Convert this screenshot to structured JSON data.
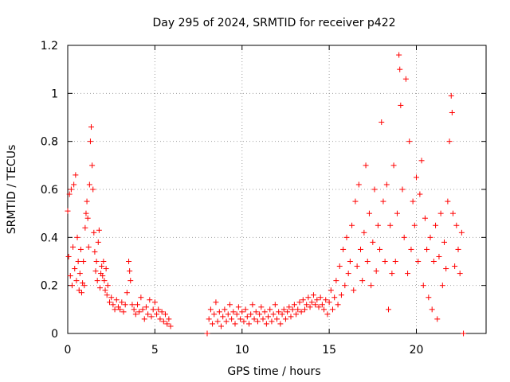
{
  "chart_data": {
    "type": "scatter",
    "title": "Day 295 of 2024, SRMTID for receiver p422",
    "xlabel": "GPS time / hours",
    "ylabel": "SRMTID / TECUs",
    "xlim": [
      0,
      24
    ],
    "ylim": [
      0,
      1.2
    ],
    "xticks": [
      0,
      5,
      10,
      15,
      20
    ],
    "yticks": [
      0,
      0.2,
      0.4,
      0.6,
      0.8,
      1,
      1.2
    ],
    "ytick_labels": [
      "0",
      "0.2",
      "0.4",
      "0.6",
      "0.8",
      "1",
      "1.2"
    ],
    "grid": true,
    "marker": "+",
    "color": "#ff0000",
    "series": [
      {
        "name": "SRMTID",
        "points": [
          [
            0.0,
            0.51
          ],
          [
            0.05,
            0.32
          ],
          [
            0.1,
            0.58
          ],
          [
            0.15,
            0.24
          ],
          [
            0.2,
            0.6
          ],
          [
            0.25,
            0.2
          ],
          [
            0.3,
            0.36
          ],
          [
            0.35,
            0.62
          ],
          [
            0.4,
            0.27
          ],
          [
            0.45,
            0.66
          ],
          [
            0.5,
            0.22
          ],
          [
            0.55,
            0.4
          ],
          [
            0.6,
            0.3
          ],
          [
            0.65,
            0.18
          ],
          [
            0.7,
            0.25
          ],
          [
            0.75,
            0.35
          ],
          [
            0.8,
            0.17
          ],
          [
            0.85,
            0.21
          ],
          [
            0.9,
            0.3
          ],
          [
            0.95,
            0.2
          ],
          [
            1.0,
            0.44
          ],
          [
            1.05,
            0.5
          ],
          [
            1.1,
            0.55
          ],
          [
            1.15,
            0.48
          ],
          [
            1.2,
            0.36
          ],
          [
            1.25,
            0.62
          ],
          [
            1.3,
            0.8
          ],
          [
            1.35,
            0.86
          ],
          [
            1.4,
            0.7
          ],
          [
            1.45,
            0.6
          ],
          [
            1.5,
            0.42
          ],
          [
            1.55,
            0.34
          ],
          [
            1.6,
            0.26
          ],
          [
            1.65,
            0.3
          ],
          [
            1.7,
            0.22
          ],
          [
            1.75,
            0.38
          ],
          [
            1.8,
            0.43
          ],
          [
            1.85,
            0.19
          ],
          [
            1.9,
            0.25
          ],
          [
            1.95,
            0.28
          ],
          [
            2.0,
            0.24
          ],
          [
            2.05,
            0.3
          ],
          [
            2.1,
            0.22
          ],
          [
            2.15,
            0.18
          ],
          [
            2.2,
            0.27
          ],
          [
            2.25,
            0.16
          ],
          [
            2.3,
            0.2
          ],
          [
            2.4,
            0.13
          ],
          [
            2.5,
            0.15
          ],
          [
            2.6,
            0.12
          ],
          [
            2.7,
            0.1
          ],
          [
            2.8,
            0.14
          ],
          [
            2.9,
            0.11
          ],
          [
            3.0,
            0.1
          ],
          [
            3.1,
            0.13
          ],
          [
            3.2,
            0.09
          ],
          [
            3.3,
            0.12
          ],
          [
            3.4,
            0.17
          ],
          [
            3.5,
            0.3
          ],
          [
            3.55,
            0.26
          ],
          [
            3.6,
            0.22
          ],
          [
            3.7,
            0.12
          ],
          [
            3.8,
            0.1
          ],
          [
            3.9,
            0.08
          ],
          [
            4.0,
            0.12
          ],
          [
            4.1,
            0.09
          ],
          [
            4.2,
            0.15
          ],
          [
            4.3,
            0.1
          ],
          [
            4.4,
            0.06
          ],
          [
            4.5,
            0.11
          ],
          [
            4.6,
            0.08
          ],
          [
            4.7,
            0.14
          ],
          [
            4.8,
            0.07
          ],
          [
            4.9,
            0.1
          ],
          [
            5.0,
            0.13
          ],
          [
            5.1,
            0.08
          ],
          [
            5.2,
            0.1
          ],
          [
            5.3,
            0.06
          ],
          [
            5.4,
            0.09
          ],
          [
            5.5,
            0.05
          ],
          [
            5.6,
            0.08
          ],
          [
            5.7,
            0.04
          ],
          [
            5.8,
            0.06
          ],
          [
            5.9,
            0.03
          ],
          [
            8.0,
            0.0
          ],
          [
            8.1,
            0.06
          ],
          [
            8.2,
            0.1
          ],
          [
            8.3,
            0.04
          ],
          [
            8.4,
            0.08
          ],
          [
            8.5,
            0.13
          ],
          [
            8.6,
            0.05
          ],
          [
            8.7,
            0.09
          ],
          [
            8.8,
            0.03
          ],
          [
            8.9,
            0.07
          ],
          [
            9.0,
            0.1
          ],
          [
            9.1,
            0.05
          ],
          [
            9.2,
            0.08
          ],
          [
            9.3,
            0.12
          ],
          [
            9.4,
            0.06
          ],
          [
            9.5,
            0.09
          ],
          [
            9.6,
            0.04
          ],
          [
            9.7,
            0.08
          ],
          [
            9.8,
            0.11
          ],
          [
            9.9,
            0.06
          ],
          [
            10.0,
            0.09
          ],
          [
            10.1,
            0.05
          ],
          [
            10.2,
            0.1
          ],
          [
            10.3,
            0.07
          ],
          [
            10.4,
            0.04
          ],
          [
            10.5,
            0.08
          ],
          [
            10.6,
            0.12
          ],
          [
            10.7,
            0.06
          ],
          [
            10.8,
            0.09
          ],
          [
            10.9,
            0.05
          ],
          [
            11.0,
            0.08
          ],
          [
            11.1,
            0.11
          ],
          [
            11.2,
            0.06
          ],
          [
            11.3,
            0.09
          ],
          [
            11.4,
            0.04
          ],
          [
            11.5,
            0.07
          ],
          [
            11.6,
            0.1
          ],
          [
            11.7,
            0.05
          ],
          [
            11.8,
            0.08
          ],
          [
            11.9,
            0.12
          ],
          [
            12.0,
            0.06
          ],
          [
            12.1,
            0.09
          ],
          [
            12.2,
            0.04
          ],
          [
            12.3,
            0.08
          ],
          [
            12.4,
            0.1
          ],
          [
            12.5,
            0.06
          ],
          [
            12.6,
            0.09
          ],
          [
            12.7,
            0.11
          ],
          [
            12.8,
            0.07
          ],
          [
            12.9,
            0.1
          ],
          [
            13.0,
            0.12
          ],
          [
            13.1,
            0.08
          ],
          [
            13.2,
            0.1
          ],
          [
            13.3,
            0.13
          ],
          [
            13.4,
            0.09
          ],
          [
            13.5,
            0.14
          ],
          [
            13.6,
            0.1
          ],
          [
            13.7,
            0.12
          ],
          [
            13.8,
            0.15
          ],
          [
            13.9,
            0.11
          ],
          [
            14.0,
            0.13
          ],
          [
            14.1,
            0.16
          ],
          [
            14.2,
            0.12
          ],
          [
            14.3,
            0.14
          ],
          [
            14.4,
            0.11
          ],
          [
            14.5,
            0.15
          ],
          [
            14.6,
            0.12
          ],
          [
            14.7,
            0.1
          ],
          [
            14.8,
            0.14
          ],
          [
            14.9,
            0.08
          ],
          [
            15.0,
            0.13
          ],
          [
            15.1,
            0.18
          ],
          [
            15.2,
            0.1
          ],
          [
            15.3,
            0.15
          ],
          [
            15.4,
            0.22
          ],
          [
            15.5,
            0.12
          ],
          [
            15.6,
            0.28
          ],
          [
            15.7,
            0.16
          ],
          [
            15.8,
            0.35
          ],
          [
            15.9,
            0.2
          ],
          [
            16.0,
            0.4
          ],
          [
            16.1,
            0.25
          ],
          [
            16.2,
            0.3
          ],
          [
            16.3,
            0.45
          ],
          [
            16.4,
            0.18
          ],
          [
            16.5,
            0.55
          ],
          [
            16.6,
            0.28
          ],
          [
            16.7,
            0.62
          ],
          [
            16.8,
            0.35
          ],
          [
            16.9,
            0.22
          ],
          [
            17.0,
            0.42
          ],
          [
            17.1,
            0.7
          ],
          [
            17.2,
            0.3
          ],
          [
            17.3,
            0.5
          ],
          [
            17.4,
            0.2
          ],
          [
            17.5,
            0.38
          ],
          [
            17.6,
            0.6
          ],
          [
            17.7,
            0.26
          ],
          [
            17.8,
            0.45
          ],
          [
            17.9,
            0.35
          ],
          [
            18.0,
            0.88
          ],
          [
            18.1,
            0.55
          ],
          [
            18.2,
            0.3
          ],
          [
            18.3,
            0.62
          ],
          [
            18.4,
            0.1
          ],
          [
            18.5,
            0.45
          ],
          [
            18.6,
            0.25
          ],
          [
            18.7,
            0.7
          ],
          [
            18.8,
            0.3
          ],
          [
            18.9,
            0.5
          ],
          [
            19.0,
            1.16
          ],
          [
            19.05,
            1.1
          ],
          [
            19.1,
            0.95
          ],
          [
            19.2,
            0.6
          ],
          [
            19.3,
            0.4
          ],
          [
            19.4,
            1.06
          ],
          [
            19.5,
            0.25
          ],
          [
            19.6,
            0.8
          ],
          [
            19.7,
            0.35
          ],
          [
            19.8,
            0.55
          ],
          [
            19.9,
            0.45
          ],
          [
            20.0,
            0.65
          ],
          [
            20.1,
            0.3
          ],
          [
            20.2,
            0.58
          ],
          [
            20.3,
            0.72
          ],
          [
            20.4,
            0.2
          ],
          [
            20.5,
            0.48
          ],
          [
            20.6,
            0.35
          ],
          [
            20.7,
            0.15
          ],
          [
            20.8,
            0.4
          ],
          [
            20.9,
            0.1
          ],
          [
            21.0,
            0.3
          ],
          [
            21.1,
            0.45
          ],
          [
            21.2,
            0.06
          ],
          [
            21.3,
            0.32
          ],
          [
            21.4,
            0.5
          ],
          [
            21.5,
            0.2
          ],
          [
            21.6,
            0.38
          ],
          [
            21.7,
            0.27
          ],
          [
            21.8,
            0.55
          ],
          [
            21.9,
            0.8
          ],
          [
            22.0,
            0.99
          ],
          [
            22.05,
            0.92
          ],
          [
            22.1,
            0.5
          ],
          [
            22.2,
            0.28
          ],
          [
            22.3,
            0.45
          ],
          [
            22.4,
            0.35
          ],
          [
            22.5,
            0.25
          ],
          [
            22.6,
            0.42
          ],
          [
            22.7,
            0.0
          ]
        ]
      }
    ]
  }
}
